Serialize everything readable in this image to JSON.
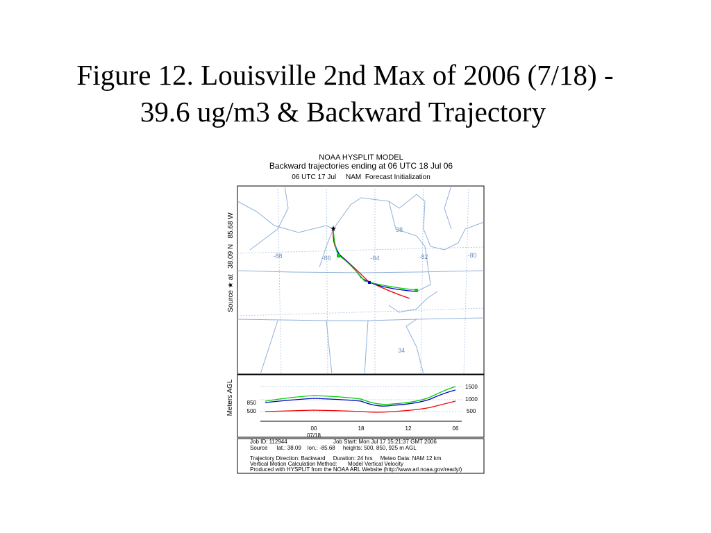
{
  "slide": {
    "title_lines": [
      "Figure 12. Louisville 2nd Max of 2006 (7/18) -",
      "39.6 ug/m3 & Backward Trajectory"
    ],
    "figure": {
      "header": [
        "NOAA HYSPLIT MODEL",
        "Backward trajectories ending at 06 UTC 18 Jul 06",
        "06 UTC 17 Jul     NAM  Forecast Initialization"
      ],
      "source_label": "Source ★ at   38.09 N   85.68 W",
      "map_labels": [
        "-88",
        "-86",
        "-84",
        "-82",
        "-80",
        "38",
        "34"
      ],
      "height_panel": {
        "y_title": "Meters AGL",
        "left_labels": [
          "850",
          "500"
        ],
        "right_labels": [
          "1500",
          "1000",
          "500"
        ],
        "x_labels": [
          "00",
          "18",
          "12",
          "06"
        ],
        "date_label": "07/18"
      },
      "footer": [
        "Job ID: 112944",
        "Job Start: Mon Jul 17 15:21:37 GMT 2006",
        "Source      lat.: 38.09    lon.: -85.68     heights: 500, 850, 925 m AGL",
        "Trajectory Direction: Backward     Duration: 24 hrs     Meteo Data: NAM 12 km",
        "Vertical Motion Calculation Method:       Model Vertical Velocity",
        "Produced with HYSPLIT from the NOAA ARL Website (http://www.arl.noaa.gov/ready/)"
      ]
    }
  }
}
